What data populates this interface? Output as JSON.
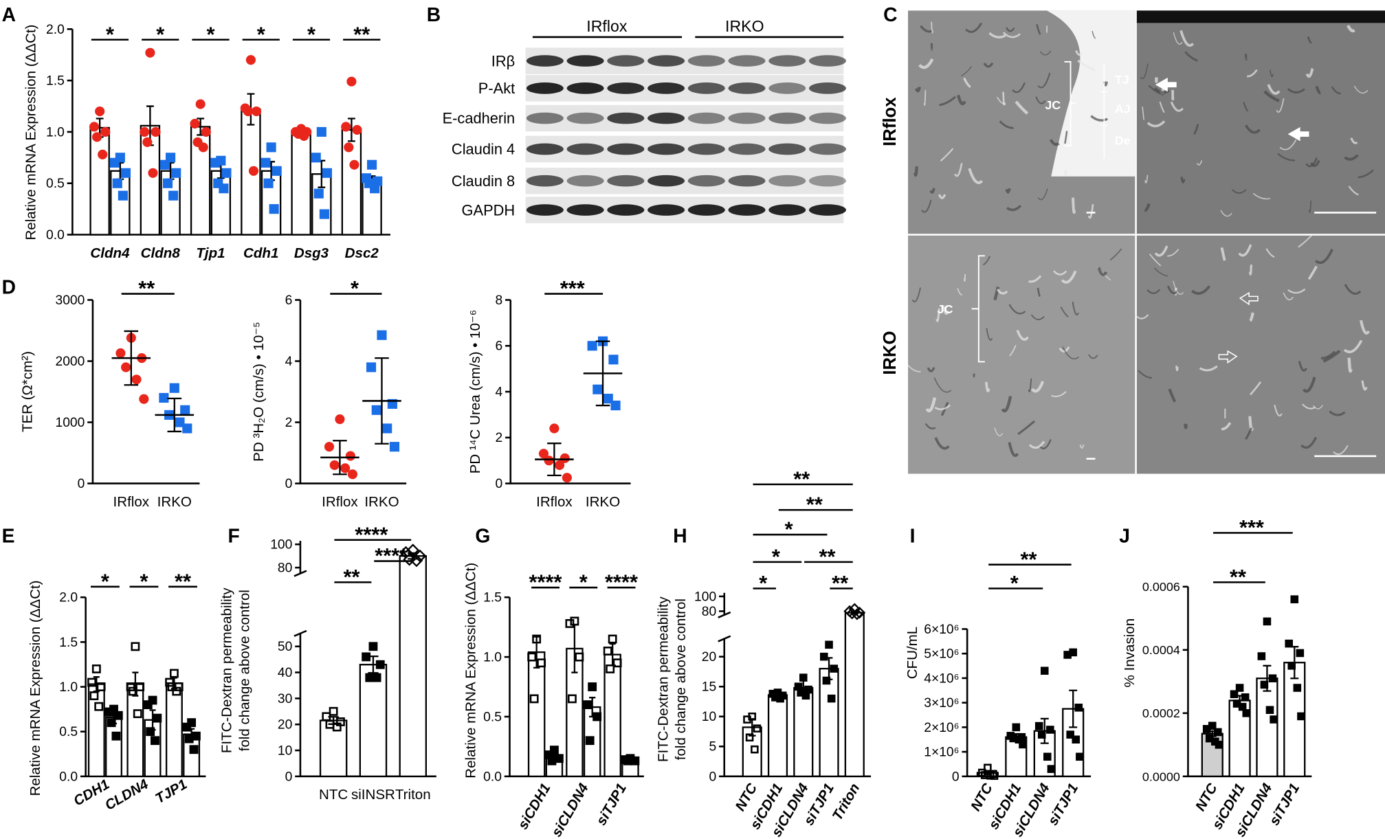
{
  "panel_labels": [
    "A",
    "B",
    "C",
    "D",
    "E",
    "F",
    "G",
    "H",
    "I",
    "J"
  ],
  "blot": {
    "groups": [
      "IRflox",
      "IRKO"
    ],
    "rows": [
      "IRβ",
      "P-Akt",
      "E-cadherin",
      "Claudin 4",
      "Claudin 8",
      "GAPDH"
    ]
  },
  "micrographs": {
    "rows": [
      "IRflox",
      "IRKO"
    ],
    "annotations": [
      "JC",
      "TJ",
      "AJ",
      "De",
      "JC"
    ]
  },
  "chart_data": [
    {
      "type": "bar",
      "categories": [
        "Cldn4",
        "Cldn8",
        "Tjp1",
        "Cdh1",
        "Dsg3",
        "Dsc2"
      ],
      "ylabel": "Relative mRNA Expression (ΔΔCt)",
      "bar_color": "#ffffff",
      "ylim": [
        0,
        2
      ],
      "yticks": [
        {
          "value": 0,
          "label": "0.0"
        },
        {
          "value": 0.5,
          "label": "0.5"
        },
        {
          "value": 1,
          "label": "1.0"
        },
        {
          "value": 1.5,
          "label": "1.5"
        },
        {
          "value": 2,
          "label": "2.0"
        }
      ],
      "series": [
        {
          "color": "#e8261c",
          "marker": "circle",
          "values": [
            1.04,
            1.06,
            1.05,
            1.22,
            0.99,
            1.02
          ],
          "errors": [
            0.09,
            0.19,
            0.08,
            0.15,
            0.03,
            0.11
          ],
          "points": [
            [
              1.2,
              1.05,
              1.0,
              0.95,
              0.78
            ],
            [
              1.77,
              1.0,
              1.0,
              0.9,
              0.6
            ],
            [
              1.27,
              1.08,
              1.0,
              0.9,
              0.85
            ],
            [
              1.7,
              1.23,
              1.2,
              1.2,
              0.62
            ],
            [
              1.03,
              1.0,
              1.0,
              0.98,
              0.96
            ],
            [
              1.49,
              1.05,
              1.02,
              0.85,
              0.68
            ]
          ]
        },
        {
          "color": "#1a6ee6",
          "marker": "square",
          "values": [
            0.62,
            0.62,
            0.62,
            0.62,
            0.59,
            0.53
          ],
          "errors": [
            0.08,
            0.08,
            0.07,
            0.09,
            0.13,
            0.04
          ],
          "points": [
            [
              0.75,
              0.7,
              0.6,
              0.5,
              0.38
            ],
            [
              0.75,
              0.68,
              0.6,
              0.5,
              0.38
            ],
            [
              0.72,
              0.7,
              0.6,
              0.5,
              0.45
            ],
            [
              0.85,
              0.7,
              0.62,
              0.5,
              0.25
            ],
            [
              1.0,
              0.75,
              0.6,
              0.4,
              0.2
            ],
            [
              0.68,
              0.55,
              0.52,
              0.5,
              0.45
            ]
          ]
        }
      ],
      "stars": [
        "*",
        "*",
        "*",
        "*",
        "*",
        "**"
      ]
    },
    {
      "type": "dot",
      "categories": [
        "IRflox",
        "IRKO"
      ],
      "ylabel": "TER (Ω*cm²)",
      "values": [
        2050,
        1120
      ],
      "errors": [
        440,
        270
      ],
      "points": [
        [
          2380,
          2130,
          2050,
          1900,
          1700,
          1380
        ],
        [
          1560,
          1400,
          1200,
          1120,
          1000,
          900
        ]
      ],
      "colors": [
        "#e8261c",
        "#1a6ee6"
      ],
      "markers": [
        "circle",
        "square"
      ],
      "ylim": [
        0,
        3000
      ],
      "yticks": [
        0,
        1000,
        2000,
        3000
      ],
      "comparisons": [
        {
          "between": [
            "IRflox",
            "IRKO"
          ],
          "label": "**"
        }
      ]
    },
    {
      "type": "dot",
      "categories": [
        "IRflox",
        "IRKO"
      ],
      "ylabel": "PD ³H₂O (cm/s) • 10⁻⁵",
      "values": [
        0.85,
        2.7
      ],
      "errors": [
        0.55,
        1.4
      ],
      "points": [
        [
          2.1,
          1.2,
          0.9,
          0.6,
          0.5,
          0.3
        ],
        [
          4.85,
          3.8,
          2.6,
          2.4,
          1.8,
          1.2
        ]
      ],
      "colors": [
        "#e8261c",
        "#1a6ee6"
      ],
      "markers": [
        "circle",
        "square"
      ],
      "ylim": [
        0,
        6
      ],
      "yticks": [
        0,
        2,
        4,
        6
      ],
      "comparisons": [
        {
          "between": [
            "IRflox",
            "IRKO"
          ],
          "label": "*"
        }
      ]
    },
    {
      "type": "dot",
      "categories": [
        "IRflox",
        "IRKO"
      ],
      "ylabel": "PD ¹⁴C Urea (cm/s) • 10⁻⁶",
      "values": [
        1.05,
        4.8
      ],
      "errors": [
        0.7,
        1.4
      ],
      "points": [
        [
          2.4,
          1.3,
          1.1,
          1.0,
          0.8,
          0.25
        ],
        [
          6.2,
          6.0,
          5.4,
          4.1,
          3.7,
          3.4
        ]
      ],
      "colors": [
        "#e8261c",
        "#1a6ee6"
      ],
      "markers": [
        "circle",
        "square"
      ],
      "ylim": [
        0,
        8
      ],
      "yticks": [
        0,
        2,
        4,
        6,
        8
      ],
      "comparisons": [
        {
          "between": [
            "IRflox",
            "IRKO"
          ],
          "label": "***"
        }
      ]
    },
    {
      "type": "bar",
      "categories": [
        "CDH1",
        "CLDN4",
        "TJP1"
      ],
      "ylabel": "Relative mRNA Expression (ΔΔCt)",
      "bar_color": "#ffffff",
      "ylim": [
        0,
        2
      ],
      "yticks": [
        {
          "value": 0,
          "label": "0.0"
        },
        {
          "value": 0.5,
          "label": "0.5"
        },
        {
          "value": 1,
          "label": "1.0"
        },
        {
          "value": 1.5,
          "label": "1.5"
        },
        {
          "value": 2,
          "label": "2.0"
        }
      ],
      "series": [
        {
          "color": "#000000",
          "marker": "open-square",
          "values": [
            1.03,
            1.03,
            1.04
          ],
          "errors": [
            0.08,
            0.13,
            0.06
          ],
          "points": [
            [
              1.2,
              1.05,
              1.0,
              0.9,
              0.78
            ],
            [
              1.45,
              1.0,
              1.0,
              0.95,
              0.7
            ],
            [
              1.15,
              1.05,
              1.0,
              1.0,
              0.95
            ]
          ]
        },
        {
          "color": "#000000",
          "marker": "square",
          "values": [
            0.66,
            0.63,
            0.47
          ],
          "errors": [
            0.07,
            0.11,
            0.06
          ],
          "points": [
            [
              0.75,
              0.72,
              0.68,
              0.6,
              0.45
            ],
            [
              0.85,
              0.8,
              0.65,
              0.5,
              0.4
            ],
            [
              0.6,
              0.55,
              0.45,
              0.42,
              0.3
            ]
          ]
        }
      ],
      "stars": [
        "*",
        "*",
        "**"
      ]
    },
    {
      "type": "bar",
      "categories": [
        "NTC",
        "siINSR",
        "Triton"
      ],
      "ylabel": [
        "FITC-Dextran permeability",
        "fold change above control"
      ],
      "values": [
        21.5,
        43,
        90
      ],
      "errors": [
        1.4,
        3.2,
        2.5
      ],
      "points": [
        [
          25,
          23,
          21,
          20,
          19
        ],
        [
          50,
          46,
          43,
          38,
          38
        ],
        [
          95,
          93,
          90,
          87,
          86
        ]
      ],
      "colors": [
        "#ffffff",
        "#ffffff",
        "#ffffff"
      ],
      "point_color": "#000000",
      "markers": [
        "open-square",
        "square",
        "open-diamond"
      ],
      "ylim": [
        0,
        100
      ],
      "ybreak": [
        55,
        75
      ],
      "yticks": [
        0,
        10,
        20,
        30,
        40,
        50,
        80,
        100
      ],
      "comparisons": [
        {
          "between": [
            "NTC",
            "siINSR"
          ],
          "label": "**"
        },
        {
          "between": [
            "siINSR",
            "Triton"
          ],
          "label": "****"
        },
        {
          "between": [
            "NTC",
            "Triton"
          ],
          "label": "****"
        }
      ]
    },
    {
      "type": "bar",
      "categories": [
        "siCDH1",
        "siCLDN4",
        "siTJP1"
      ],
      "ylabel": "Relative mRNA Expression (ΔΔCt)",
      "bar_color": "#ffffff",
      "ylim": [
        0,
        1.5
      ],
      "yticks": [
        {
          "value": 0,
          "label": "0.0"
        },
        {
          "value": 0.5,
          "label": "0.5"
        },
        {
          "value": 1,
          "label": "1.0"
        },
        {
          "value": 1.5,
          "label": "1.5"
        }
      ],
      "series": [
        {
          "color": "#000000",
          "marker": "open-square",
          "values": [
            1.04,
            1.07,
            1.02
          ],
          "errors": [
            0.13,
            0.2,
            0.09
          ],
          "points": [
            [
              1.15,
              1.0,
              0.95,
              0.65
            ],
            [
              1.3,
              1.28,
              1.0,
              0.65
            ],
            [
              1.15,
              1.05,
              0.95,
              0.9
            ]
          ]
        },
        {
          "color": "#000000",
          "marker": "square",
          "values": [
            0.17,
            0.58,
            0.14
          ],
          "errors": [
            0.02,
            0.08,
            0.01
          ],
          "points": [
            [
              0.22,
              0.18,
              0.15,
              0.13
            ],
            [
              0.75,
              0.6,
              0.5,
              0.3
            ],
            [
              0.15,
              0.14,
              0.13,
              0.13
            ]
          ]
        }
      ],
      "stars": [
        "****",
        "*",
        "****"
      ]
    },
    {
      "type": "bar",
      "categories": [
        "NTC",
        "siCDH1",
        "siCLDN4",
        "siTJP1",
        "Triton"
      ],
      "ylabel": [
        "FITC-Dextran permeability",
        "fold change above control"
      ],
      "values": [
        8.2,
        13.6,
        14.8,
        18,
        78
      ],
      "errors": [
        1.4,
        0.5,
        1.2,
        1.8,
        1.5
      ],
      "points": [
        [
          10,
          9.5,
          8,
          6.5,
          4.5
        ],
        [
          14,
          13.8,
          13.5,
          13.2,
          13
        ],
        [
          16.5,
          15,
          14.5,
          14,
          13.5
        ],
        [
          22,
          20,
          18,
          16,
          13
        ],
        [
          83,
          80,
          78,
          77,
          76
        ]
      ],
      "colors": [
        "#ffffff",
        "#ffffff",
        "#ffffff",
        "#ffffff",
        "#ffffff"
      ],
      "point_color": "#000000",
      "markers": [
        "open-square",
        "square",
        "square",
        "square",
        "open-diamond"
      ],
      "ylim": [
        0,
        100
      ],
      "ybreak": [
        23,
        75
      ],
      "yticks": [
        0,
        5,
        10,
        15,
        20,
        80,
        100
      ],
      "comparisons": [
        {
          "between": [
            "NTC",
            "siCDH1"
          ],
          "label": "*"
        },
        {
          "between": [
            "siTJP1",
            "Triton"
          ],
          "label": "**"
        },
        {
          "between": [
            "NTC",
            "siCLDN4"
          ],
          "label": "*"
        },
        {
          "between": [
            "siCLDN4",
            "Triton"
          ],
          "label": "**"
        },
        {
          "between": [
            "NTC",
            "siTJP1"
          ],
          "label": "*"
        },
        {
          "between": [
            "siCDH1",
            "Triton"
          ],
          "label": "**"
        },
        {
          "between": [
            "NTC",
            "Triton"
          ],
          "label": "**"
        }
      ]
    },
    {
      "type": "bar",
      "categories": [
        "NTC",
        "siCDH1",
        "siCLDN4",
        "siTJP1"
      ],
      "ylabel": "CFU/mL",
      "values": [
        150000,
        1600000,
        1850000,
        2750000
      ],
      "errors": [
        60000,
        130000,
        500000,
        750000
      ],
      "points": [
        [
          350000,
          150000,
          100000,
          50000,
          30000,
          20000
        ],
        [
          2000000,
          1650000,
          1600000,
          1550000,
          1500000,
          1300000
        ],
        [
          4300000,
          2050000,
          1900000,
          1700000,
          800000,
          300000
        ],
        [
          5050000,
          4950000,
          2800000,
          1700000,
          1500000,
          800000
        ]
      ],
      "colors": [
        "#ffffff",
        "#ffffff",
        "#ffffff",
        "#ffffff"
      ],
      "point_color": "#000000",
      "markers": [
        "open-square",
        "square",
        "square",
        "square"
      ],
      "ylim": [
        0,
        6000000
      ],
      "yticks": [
        0,
        {
          "value": 1000000,
          "label": "1×10⁶"
        },
        {
          "value": 2000000,
          "label": "2×10⁶"
        },
        {
          "value": 3000000,
          "label": "3×10⁶"
        },
        {
          "value": 4000000,
          "label": "4×10⁶"
        },
        {
          "value": 5000000,
          "label": "5×10⁶"
        },
        {
          "value": 6000000,
          "label": "6×10⁶"
        }
      ],
      "comparisons": [
        {
          "between": [
            "NTC",
            "siCLDN4"
          ],
          "label": "*"
        },
        {
          "between": [
            "NTC",
            "siTJP1"
          ],
          "label": "**"
        }
      ]
    },
    {
      "type": "bar",
      "categories": [
        "NTC",
        "siCDH1",
        "siCLDN4",
        "siTJP1"
      ],
      "ylabel": "% Invasion",
      "values": [
        0.000135,
        0.00024,
        0.00031,
        0.00036
      ],
      "errors": [
        8e-06,
        1.5e-05,
        4e-05,
        5e-05
      ],
      "points": [
        [
          0.00016,
          0.00015,
          0.00014,
          0.00012,
          0.00011,
          0.0001
        ],
        [
          0.00028,
          0.00026,
          0.00025,
          0.00023,
          0.00022,
          0.0002
        ],
        [
          0.00049,
          0.00038,
          0.00031,
          0.00029,
          0.00021,
          0.00018
        ],
        [
          0.00056,
          0.00042,
          0.00039,
          0.00035,
          0.00028,
          0.00019
        ]
      ],
      "colors": [
        "#cfcfcf",
        "#ffffff",
        "#ffffff",
        "#ffffff"
      ],
      "point_color": "#000000",
      "markers": [
        "square",
        "square",
        "square",
        "square"
      ],
      "ylim": [
        0,
        0.0006
      ],
      "yticks": [
        {
          "value": 0,
          "label": "0.0000"
        },
        {
          "value": 0.0002,
          "label": "0.0002"
        },
        {
          "value": 0.0004,
          "label": "0.0004"
        },
        {
          "value": 0.0006,
          "label": "0.0006"
        }
      ],
      "comparisons": [
        {
          "between": [
            "NTC",
            "siCLDN4"
          ],
          "label": "**"
        },
        {
          "between": [
            "NTC",
            "siTJP1"
          ],
          "label": "***"
        }
      ]
    }
  ]
}
